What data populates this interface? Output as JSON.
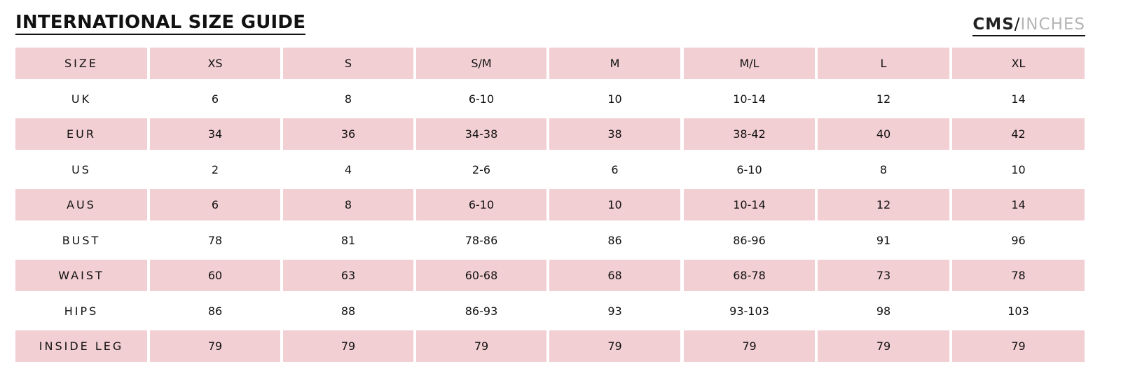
{
  "header": {
    "title": "INTERNATIONAL SIZE GUIDE",
    "units": {
      "active": "CMS",
      "separator": "/",
      "inactive": "INCHES"
    }
  },
  "table": {
    "header": [
      "SIZE",
      "XS",
      "S",
      "S/M",
      "M",
      "M/L",
      "L",
      "XL"
    ],
    "rows": [
      [
        "UK",
        "6",
        "8",
        "6-10",
        "10",
        "10-14",
        "12",
        "14"
      ],
      [
        "EUR",
        "34",
        "36",
        "34-38",
        "38",
        "38-42",
        "40",
        "42"
      ],
      [
        "US",
        "2",
        "4",
        "2-6",
        "6",
        "6-10",
        "8",
        "10"
      ],
      [
        "AUS",
        "6",
        "8",
        "6-10",
        "10",
        "10-14",
        "12",
        "14"
      ],
      [
        "BUST",
        "78",
        "81",
        "78-86",
        "86",
        "86-96",
        "91",
        "96"
      ],
      [
        "WAIST",
        "60",
        "63",
        "60-68",
        "68",
        "68-78",
        "73",
        "78"
      ],
      [
        "HIPS",
        "86",
        "88",
        "86-93",
        "93",
        "93-103",
        "98",
        "103"
      ],
      [
        "INSIDE LEG",
        "79",
        "79",
        "79",
        "79",
        "79",
        "79",
        "79"
      ]
    ]
  }
}
